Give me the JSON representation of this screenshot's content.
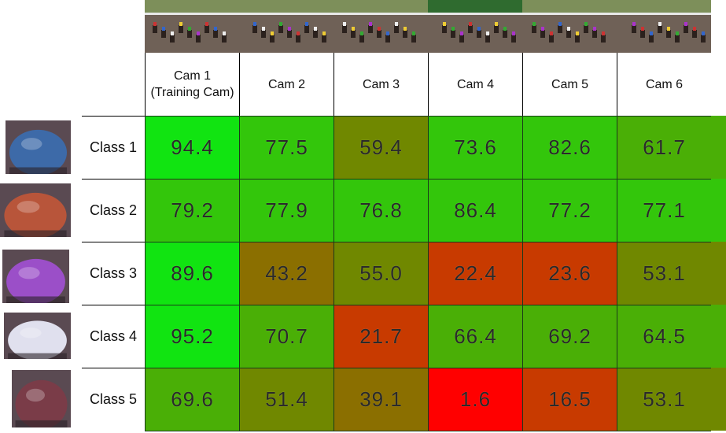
{
  "chart_data": {
    "type": "heatmap",
    "columns": [
      {
        "label": "Cam 1",
        "sublabel": "(Training Cam)"
      },
      {
        "label": "Cam 2",
        "sublabel": ""
      },
      {
        "label": "Cam 3",
        "sublabel": ""
      },
      {
        "label": "Cam 4",
        "sublabel": ""
      },
      {
        "label": "Cam 5",
        "sublabel": ""
      },
      {
        "label": "Cam 6",
        "sublabel": ""
      }
    ],
    "rows": [
      {
        "label": "Class 1",
        "values": [
          "94.4",
          "77.5",
          "59.4",
          "73.6",
          "82.6",
          "61.7"
        ]
      },
      {
        "label": "Class 2",
        "values": [
          "79.2",
          "77.9",
          "76.8",
          "86.4",
          "77.2",
          "77.1"
        ]
      },
      {
        "label": "Class 3",
        "values": [
          "89.6",
          "43.2",
          "55.0",
          "22.4",
          "23.6",
          "53.1"
        ]
      },
      {
        "label": "Class 4",
        "values": [
          "95.2",
          "70.7",
          "21.7",
          "66.4",
          "69.2",
          "64.5"
        ]
      },
      {
        "label": "Class 5",
        "values": [
          "69.6",
          "51.4",
          "39.1",
          "1.6",
          "16.5",
          "53.1"
        ]
      }
    ],
    "colors": {
      "high": "#11e411",
      "good": "#33c60b",
      "mid_green": "#4aaf06",
      "olive": "#708800",
      "brown": "#8b6f00",
      "orange_red": "#c83a00",
      "red": "#ff0000"
    },
    "class_thumb_colors": [
      "#3d6aa8",
      "#b8553a",
      "#9b4fc8",
      "#e0e0ee",
      "#7a3c48"
    ]
  }
}
